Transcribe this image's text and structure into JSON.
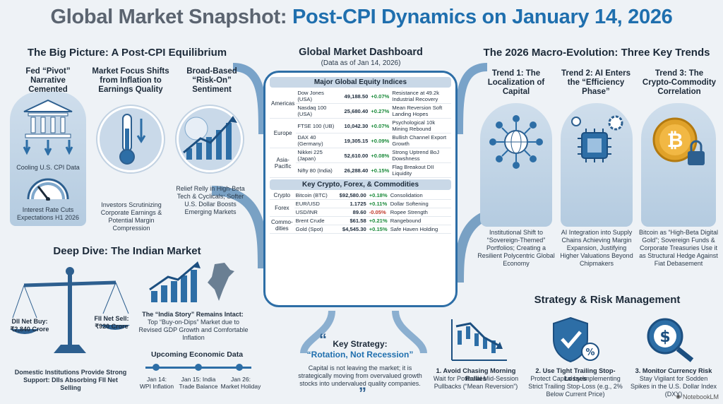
{
  "header": {
    "title_a": "Global Market Snapshot:",
    "title_b": "Post-CPI Dynamics on January 14, 2026"
  },
  "big_picture": {
    "title": "The Big Picture: A Post-CPI Equilibrium",
    "cols": [
      {
        "title": "Fed “Pivot” Narrative Cemented",
        "caption1": "Cooling U.S. CPI Data",
        "caption2": "Interest Rate Cuts Expectations H1 2026"
      },
      {
        "title": "Market Focus Shifts from Inflation to Earnings Quality",
        "caption": "Investors Scrutinizing Corporate Earnings & Potential Margin Compression"
      },
      {
        "title": "Broad-Based “Risk-On” Sentiment",
        "caption": "Relief Relly in High-Beta Tech & Cyclicals; Softer U.S. Dollar Boosts Emerging Markets"
      }
    ]
  },
  "dashboard": {
    "title": "Global Market Dashboard",
    "subtitle": "(Data as of Jan 14, 2026)",
    "equity_title": "Major Global Equity Indices",
    "equities": [
      {
        "region": "Americas",
        "rows": [
          {
            "name": "Dow Jones (USA)",
            "value": "49,188.50",
            "change": "+0.07%",
            "note": "Resistance at 49.2k Industrial Recovery"
          },
          {
            "name": "Nasdaq 100 (USA)",
            "value": "25,680.40",
            "change": "+0.27%",
            "note": "Mean Reversion Soft Landing Hopes"
          }
        ]
      },
      {
        "region": "Europe",
        "rows": [
          {
            "name": "FTSE 100 (UB)",
            "value": "10,042.30",
            "change": "+0.07%",
            "note": "Psychological 10k Mining Rebound"
          },
          {
            "name": "DAX 40 (Germany)",
            "value": "19,305.15",
            "change": "+0.09%",
            "note": "Bullish Channel Export Growth"
          }
        ]
      },
      {
        "region": "Asia-Pacific",
        "rows": [
          {
            "name": "Nikkei 225 (Japan)",
            "value": "52,610.00",
            "change": "+0.08%",
            "note": "Strong Uptrend BoJ Dowshness"
          },
          {
            "name": "Nifty 80 (India)",
            "value": "26,288.40",
            "change": "+0.15%",
            "note": "Flag Breakout DII Liquidity"
          }
        ]
      }
    ],
    "other_title": "Key Crypto, Forex, & Commodities",
    "others": [
      {
        "region": "Crypto",
        "rows": [
          {
            "name": "Bitcoin (BTC)",
            "value": "$92,580.00",
            "change": "+0.18%",
            "note": "Consolidation",
            "neg": false
          }
        ]
      },
      {
        "region": "Forex",
        "rows": [
          {
            "name": "EUR/USD",
            "value": "1.1725",
            "change": "+0.11%",
            "note": "Dollar Softening",
            "neg": false
          },
          {
            "name": "USD/INR",
            "value": "89.60",
            "change": "-0.05%",
            "note": "Ropee Strength",
            "neg": true
          }
        ]
      },
      {
        "region": "Commo-dities",
        "rows": [
          {
            "name": "Brent Crude",
            "value": "$61.58",
            "change": "+0.21%",
            "note": "Rangebound",
            "neg": false
          },
          {
            "name": "Gold (Spot)",
            "value": "$4,545.30",
            "change": "+0.15%",
            "note": "Safe Haven Holding",
            "neg": false
          }
        ]
      }
    ]
  },
  "trends": {
    "title": "The 2026 Macro-Evolution: Three Key Trends",
    "items": [
      {
        "title": "Trend 1: The Localization of Capital",
        "caption": "Institutional Shift to “Sovereign-Themed” Portfolios; Creating a Resilient Polycentric Global Economy"
      },
      {
        "title": "Trend 2: AI Enters the “Efficiency Phase”",
        "caption": "AI Integration into Supply Chains Achieving Margin Expansion, Justifying Higher Valuations Beyond Chipmakers"
      },
      {
        "title": "Trend 3: The Crypto-Commodity Correlation",
        "caption": "Bitcoin as “High-Beta Digital Gold”; Sovereign Funds & Corporate Treasuries Use it as Structural Hedge Against Fiat Debasement"
      }
    ]
  },
  "india": {
    "title": "Deep Dive: The Indian Market",
    "dii": "DII Net Buy: ₹2,840 Crore",
    "fii": "FII Net Sell: ₹920 Crore",
    "scale_caption": "Domestic Institutions Provide Strong Support: DIIs Absorbing FII Net Selling",
    "story_title": "The “India Story” Remains Intact:",
    "story_text": "Top “Buy-on-Dips” Market due to Revised GDP Growth and Comfortable Inflation",
    "upcoming_title": "Upcoming Economic Data",
    "upcoming": [
      {
        "date": "Jan 14:",
        "event": "WPI Inflation"
      },
      {
        "date": "Jan 15: India",
        "event": "Trade Balance"
      },
      {
        "date": "Jan 26:",
        "event": "Market Holiday"
      }
    ]
  },
  "strategy": {
    "title": "Key Strategy:",
    "subtitle": "“Rotation, Not Recession”",
    "text": "Capital is not leaving the market; it is strategically moving from overvalued growth stocks into undervalued quality companies."
  },
  "risk": {
    "title": "Strategy & Risk Management",
    "items": [
      {
        "title": "1. Avoid Chasing Morning Rallies",
        "text": "Wait for Potential Mid-Session Pullbacks (“Mean Reversion”)"
      },
      {
        "title": "2. Use Tight Trailing Stop-Losses",
        "text": "Protect Capital by Implementing Strict Trailing Stop-Loss (e.g., 2% Below Current Price)"
      },
      {
        "title": "3. Monitor Currency Risk",
        "text": "Stay Vigilant for Sodden Spikes in the U.S. Dollar Index (DXY)"
      }
    ]
  },
  "footer": {
    "brand": "NotebookLM"
  },
  "colors": {
    "accent": "#1f6fae",
    "positive": "#1a8a3a",
    "negative": "#c0392b"
  }
}
